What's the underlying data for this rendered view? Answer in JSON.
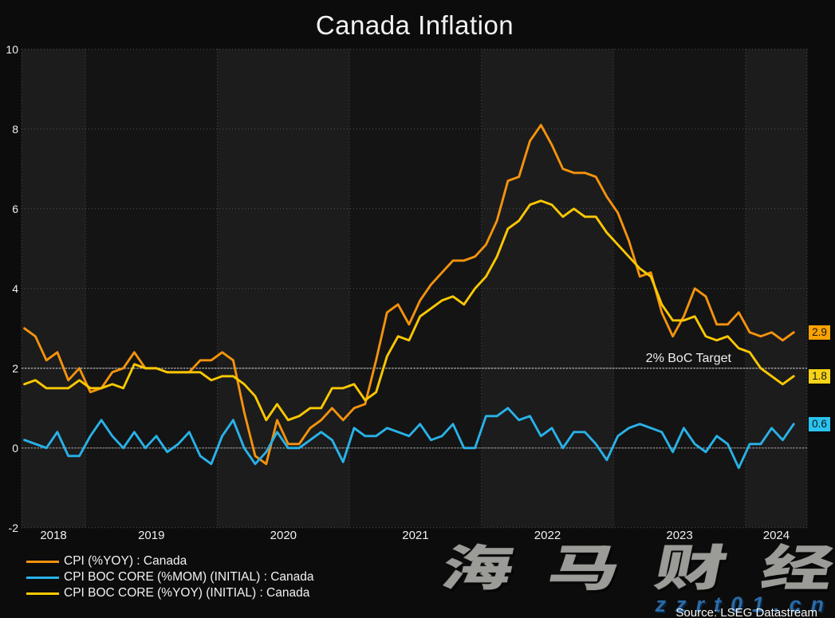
{
  "title": "Canada Inflation",
  "target_label": "2% BoC Target",
  "source_note": "Source: LSEG Datastream",
  "watermark": {
    "cjk": "海马财经",
    "domain": "zzrt01.cn"
  },
  "colors": {
    "background": "#0c0c0c",
    "band_light": "#1c1c1c",
    "band_dark": "#141414",
    "grid": "#525252",
    "zero_line": "#9c9c9c",
    "target_line": "#c6c6c6",
    "text": "#f0f0f0",
    "cpi_yoy": "#f4930e",
    "core_mom": "#29b2e8",
    "core_yoy": "#fcc802"
  },
  "legend": [
    {
      "label": "CPI (%YOY) : Canada",
      "color": "#f4930e"
    },
    {
      "label": "CPI BOC CORE (%MOM) (INITIAL) : Canada",
      "color": "#29b2e8"
    },
    {
      "label": "CPI BOC CORE (%YOY) (INITIAL) : Canada",
      "color": "#fcc802"
    }
  ],
  "end_labels": [
    {
      "value": "2.9",
      "color": "#fba201",
      "at": 2.9
    },
    {
      "value": "1.8",
      "color": "#f6d316",
      "at": 1.8
    },
    {
      "value": "0.6",
      "color": "#29c3f0",
      "at": 0.6
    }
  ],
  "chart_data": {
    "type": "line",
    "title": "Canada Inflation",
    "xlabel": "",
    "ylabel": "",
    "ylim": [
      -2,
      10
    ],
    "y_ticks": [
      10,
      8,
      6,
      4,
      2,
      0,
      -2
    ],
    "x_tick_labels": [
      "2018",
      "2019",
      "2020",
      "2021",
      "2022",
      "2023",
      "2024"
    ],
    "grid": "dotted, alternating year shading",
    "legend_position": "bottom-left",
    "annotations": {
      "target_line_y": 2,
      "target_line_label": "2% BoC Target"
    },
    "x": [
      "2018-07",
      "2018-08",
      "2018-09",
      "2018-10",
      "2018-11",
      "2018-12",
      "2019-01",
      "2019-02",
      "2019-03",
      "2019-04",
      "2019-05",
      "2019-06",
      "2019-07",
      "2019-08",
      "2019-09",
      "2019-10",
      "2019-11",
      "2019-12",
      "2020-01",
      "2020-02",
      "2020-03",
      "2020-04",
      "2020-05",
      "2020-06",
      "2020-07",
      "2020-08",
      "2020-09",
      "2020-10",
      "2020-11",
      "2020-12",
      "2021-01",
      "2021-02",
      "2021-03",
      "2021-04",
      "2021-05",
      "2021-06",
      "2021-07",
      "2021-08",
      "2021-09",
      "2021-10",
      "2021-11",
      "2021-12",
      "2022-01",
      "2022-02",
      "2022-03",
      "2022-04",
      "2022-05",
      "2022-06",
      "2022-07",
      "2022-08",
      "2022-09",
      "2022-10",
      "2022-11",
      "2022-12",
      "2023-01",
      "2023-02",
      "2023-03",
      "2023-04",
      "2023-05",
      "2023-06",
      "2023-07",
      "2023-08",
      "2023-09",
      "2023-10",
      "2023-11",
      "2023-12",
      "2024-01",
      "2024-02",
      "2024-03",
      "2024-04",
      "2024-05"
    ],
    "series": [
      {
        "name": "CPI (%YOY) : Canada",
        "color": "#f4930e",
        "values": [
          3.0,
          2.8,
          2.2,
          2.4,
          1.7,
          2.0,
          1.4,
          1.5,
          1.9,
          2.0,
          2.4,
          2.0,
          2.0,
          1.9,
          1.9,
          1.9,
          2.2,
          2.2,
          2.4,
          2.2,
          0.9,
          -0.2,
          -0.4,
          0.7,
          0.1,
          0.1,
          0.5,
          0.7,
          1.0,
          0.7,
          1.0,
          1.1,
          2.2,
          3.4,
          3.6,
          3.1,
          3.7,
          4.1,
          4.4,
          4.7,
          4.7,
          4.8,
          5.1,
          5.7,
          6.7,
          6.8,
          7.7,
          8.1,
          7.6,
          7.0,
          6.9,
          6.9,
          6.8,
          6.3,
          5.9,
          5.2,
          4.3,
          4.4,
          3.4,
          2.8,
          3.3,
          4.0,
          3.8,
          3.1,
          3.1,
          3.4,
          2.9,
          2.8,
          2.9,
          2.7,
          2.9
        ]
      },
      {
        "name": "CPI BOC CORE (%MOM) (INITIAL) : Canada",
        "color": "#29b2e8",
        "values": [
          0.2,
          0.1,
          0.0,
          0.4,
          -0.2,
          -0.2,
          0.3,
          0.7,
          0.3,
          0.0,
          0.4,
          0.0,
          0.3,
          -0.1,
          0.1,
          0.4,
          -0.2,
          -0.4,
          0.3,
          0.7,
          0.0,
          -0.4,
          -0.1,
          0.4,
          0.0,
          0.0,
          0.2,
          0.4,
          0.2,
          -0.35,
          0.5,
          0.3,
          0.3,
          0.5,
          0.4,
          0.3,
          0.6,
          0.2,
          0.3,
          0.6,
          0.0,
          0.0,
          0.8,
          0.8,
          1.0,
          0.7,
          0.8,
          0.3,
          0.5,
          0.0,
          0.4,
          0.4,
          0.1,
          -0.3,
          0.3,
          0.5,
          0.6,
          0.5,
          0.4,
          -0.1,
          0.5,
          0.1,
          -0.1,
          0.3,
          0.1,
          -0.5,
          0.1,
          0.1,
          0.5,
          0.2,
          0.6
        ]
      },
      {
        "name": "CPI BOC CORE (%YOY) (INITIAL) : Canada",
        "color": "#fcc802",
        "values": [
          1.6,
          1.7,
          1.5,
          1.5,
          1.5,
          1.7,
          1.5,
          1.5,
          1.6,
          1.5,
          2.1,
          2.0,
          2.0,
          1.9,
          1.9,
          1.9,
          1.9,
          1.7,
          1.8,
          1.8,
          1.6,
          1.3,
          0.7,
          1.1,
          0.7,
          0.8,
          1.0,
          1.0,
          1.5,
          1.5,
          1.6,
          1.2,
          1.4,
          2.3,
          2.8,
          2.7,
          3.3,
          3.5,
          3.7,
          3.8,
          3.6,
          4.0,
          4.3,
          4.8,
          5.5,
          5.7,
          6.1,
          6.2,
          6.1,
          5.8,
          6.0,
          5.8,
          5.8,
          5.4,
          5.1,
          4.8,
          4.5,
          4.3,
          3.6,
          3.2,
          3.2,
          3.3,
          2.8,
          2.7,
          2.8,
          2.5,
          2.4,
          2.0,
          1.8,
          1.6,
          1.8
        ]
      }
    ]
  }
}
